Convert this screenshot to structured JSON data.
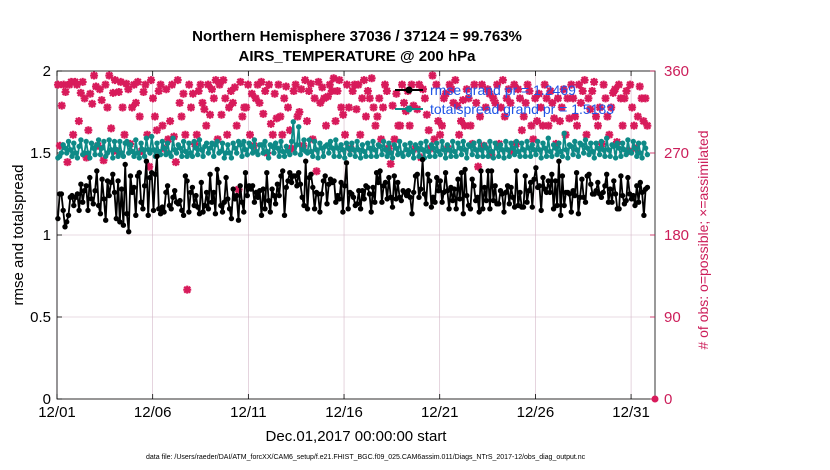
{
  "chart_data": {
    "type": "line",
    "title_line1": "Northern Hemisphere 37036 / 37124 = 99.763%",
    "title_line2": "AIRS_TEMPERATURE @ 200 hPa",
    "xlabel": "Dec.01,2017 00:00:00 start",
    "ylabel": "rmse and totalspread",
    "ylabel_right": "# of obs: o=possible; ×=assimilated",
    "footnote": "data file: /Users/raeder/DAI/ATM_forcXX/CAM6_setup/f.e21.FHIST_BGC.f09_025.CAM6assim.011/Diags_NTrS_2017-12/obs_diag_output.nc",
    "xlim": [
      0,
      31.25
    ],
    "ylim": [
      0,
      2
    ],
    "ylim_right": [
      0,
      360
    ],
    "x_ticks": [
      0,
      5,
      10,
      15,
      20,
      25,
      30
    ],
    "x_tick_labels": [
      "12/01",
      "12/06",
      "12/11",
      "12/16",
      "12/21",
      "12/26",
      "12/31"
    ],
    "y_ticks": [
      0,
      0.5,
      1,
      1.5,
      2
    ],
    "y_tick_labels": [
      "0",
      "0.5",
      "1",
      "1.5",
      "2"
    ],
    "y_right_ticks": [
      0,
      90,
      180,
      270,
      360
    ],
    "y_right_tick_labels": [
      "0",
      "90",
      "180",
      "270",
      "360"
    ],
    "colors": {
      "rmse": "#000000",
      "spread": "#0e8a87",
      "obs": "#d81b5b",
      "legend_text": "#1f55e6",
      "right_axis": "#cc1e5a",
      "grid": "#d4b8c8"
    },
    "series": [
      {
        "name": "rmse grand pr = 1.2469",
        "key": "rmse",
        "values": [
          1.1,
          1.25,
          1.25,
          1.15,
          1.05,
          1.08,
          1.12,
          1.23,
          1.24,
          1.18,
          1.23,
          1.25,
          1.15,
          1.31,
          1.2,
          1.27,
          1.3,
          1.15,
          1.35,
          1.22,
          1.19,
          1.27,
          1.39,
          1.18,
          1.13,
          1.34,
          1.22,
          1.09,
          1.33,
          1.24,
          1.32,
          1.37,
          1.26,
          1.1,
          1.33,
          1.08,
          1.28,
          1.06,
          1.43,
          1.13,
          1.02,
          1.36,
          1.26,
          1.29,
          1.12,
          1.36,
          1.38,
          1.2,
          1.16,
          1.3,
          1.45,
          1.12,
          1.35,
          1.38,
          1.15,
          1.37,
          1.48,
          1.16,
          1.13,
          1.17,
          1.14,
          1.26,
          1.3,
          1.18,
          1.16,
          1.23,
          1.27,
          1.2,
          1.19,
          1.21,
          1.15,
          1.12,
          1.36,
          1.33,
          1.14,
          1.26,
          1.29,
          1.18,
          1.24,
          1.17,
          1.13,
          1.32,
          1.14,
          1.18,
          1.26,
          1.16,
          1.37,
          1.2,
          1.26,
          1.13,
          1.4,
          1.32,
          1.18,
          1.14,
          1.2,
          1.35,
          1.22,
          1.16,
          1.1,
          1.28,
          1.22,
          1.24,
          1.09,
          1.3,
          1.2,
          1.14,
          1.38,
          1.24,
          1.3,
          1.28,
          1.3,
          1.2,
          1.26,
          1.23,
          1.27,
          1.12,
          1.28,
          1.16,
          1.38,
          1.21,
          1.14,
          1.28,
          1.24,
          1.19,
          1.31,
          1.24,
          1.36,
          1.39,
          1.12,
          1.29,
          1.33,
          1.38,
          1.32,
          1.36,
          1.36,
          1.3,
          1.38,
          1.31,
          1.23,
          1.18,
          1.45,
          1.16,
          1.35,
          1.37,
          1.29,
          1.16,
          1.26,
          1.25,
          1.14,
          1.25,
          1.33,
          1.36,
          1.19,
          1.31,
          1.34,
          1.32,
          1.33,
          1.2,
          1.24,
          1.22,
          1.32,
          1.14,
          1.3,
          1.44,
          1.16,
          1.26,
          1.25,
          1.23,
          1.18,
          1.19,
          1.27,
          1.16,
          1.27,
          1.22,
          1.3,
          1.29,
          1.25,
          1.14,
          1.29,
          1.2,
          1.38,
          1.32,
          1.39,
          1.2,
          1.3,
          1.32,
          1.22,
          1.35,
          1.23,
          1.17,
          1.36,
          1.22,
          1.32,
          1.23,
          1.21,
          1.27,
          1.26,
          1.24,
          1.27,
          1.23,
          1.13,
          1.26,
          1.36,
          1.37,
          1.23,
          1.28,
          1.46,
          1.25,
          1.19,
          1.37,
          1.33,
          1.17,
          1.23,
          1.2,
          1.35,
          1.27,
          1.33,
          1.2,
          1.26,
          1.38,
          1.27,
          1.16,
          1.29,
          1.21,
          1.28,
          1.16,
          1.34,
          1.22,
          1.38,
          1.13,
          1.4,
          1.24,
          1.18,
          1.16,
          1.34,
          1.3,
          1.21,
          1.23,
          1.14,
          1.39,
          1.16,
          1.29,
          1.21,
          1.39,
          1.16,
          1.39,
          1.21,
          1.3,
          1.19,
          1.19,
          1.27,
          1.25,
          1.14,
          1.26,
          1.3,
          1.19,
          1.29,
          1.23,
          1.17,
          1.39,
          1.18,
          1.26,
          1.17,
          1.17,
          1.36,
          1.2,
          1.27,
          1.32,
          1.17,
          1.34,
          1.41,
          1.29,
          1.3,
          1.15,
          1.35,
          1.28,
          1.26,
          1.33,
          1.26,
          1.37,
          1.16,
          1.33,
          1.18,
          1.45,
          1.12,
          1.36,
          1.18,
          1.26,
          1.26,
          1.25,
          1.14,
          1.27,
          1.24,
          1.38,
          1.13,
          1.23,
          1.34,
          1.23,
          1.2,
          1.36,
          1.37,
          1.31,
          1.25,
          1.25,
          1.27,
          1.32,
          1.25,
          1.23,
          1.26,
          1.3,
          1.37,
          1.2,
          1.28,
          1.2,
          1.33,
          1.25,
          1.16,
          1.16,
          1.36,
          1.24,
          1.19,
          1.21,
          1.35,
          1.25,
          1.22,
          1.24,
          1.18,
          1.3,
          1.2,
          1.32,
          1.26,
          1.12,
          1.28,
          1.29
        ]
      },
      {
        "name": "totalspread grand pr = 1.5183",
        "key": "spread",
        "values": [
          1.47,
          1.48,
          1.5,
          1.55,
          1.53,
          1.5,
          1.57,
          1.52,
          1.48,
          1.56,
          1.5,
          1.47,
          1.54,
          1.58,
          1.49,
          1.5,
          1.57,
          1.5,
          1.47,
          1.56,
          1.53,
          1.49,
          1.55,
          1.58,
          1.49,
          1.53,
          1.57,
          1.48,
          1.5,
          1.58,
          1.52,
          1.47,
          1.57,
          1.52,
          1.48,
          1.57,
          1.5,
          1.48,
          1.56,
          1.57,
          1.5,
          1.55,
          1.51,
          1.48,
          1.58,
          1.5,
          1.47,
          1.56,
          1.52,
          1.48,
          1.59,
          1.52,
          1.5,
          1.6,
          1.52,
          1.48,
          1.56,
          1.51,
          1.49,
          1.57,
          1.53,
          1.49,
          1.56,
          1.5,
          1.48,
          1.59,
          1.52,
          1.5,
          1.55,
          1.53,
          1.48,
          1.57,
          1.51,
          1.48,
          1.56,
          1.5,
          1.48,
          1.57,
          1.53,
          1.49,
          1.58,
          1.52,
          1.48,
          1.54,
          1.56,
          1.5,
          1.53,
          1.56,
          1.48,
          1.55,
          1.57,
          1.5,
          1.51,
          1.56,
          1.47,
          1.5,
          1.55,
          1.5,
          1.47,
          1.56,
          1.53,
          1.5,
          1.57,
          1.55,
          1.48,
          1.57,
          1.52,
          1.49,
          1.56,
          1.54,
          1.5,
          1.58,
          1.51,
          1.49,
          1.55,
          1.55,
          1.5,
          1.57,
          1.51,
          1.47,
          1.55,
          1.54,
          1.5,
          1.56,
          1.53,
          1.48,
          1.57,
          1.51,
          1.48,
          1.54,
          1.51,
          1.49,
          1.57,
          1.69,
          1.5,
          1.55,
          1.66,
          1.49,
          1.52,
          1.58,
          1.51,
          1.5,
          1.58,
          1.51,
          1.48,
          1.57,
          1.52,
          1.47,
          1.56,
          1.53,
          1.48,
          1.54,
          1.55,
          1.5,
          1.57,
          1.53,
          1.48,
          1.58,
          1.53,
          1.48,
          1.55,
          1.52,
          1.47,
          1.56,
          1.53,
          1.49,
          1.56,
          1.52,
          1.48,
          1.57,
          1.52,
          1.47,
          1.55,
          1.51,
          1.48,
          1.56,
          1.53,
          1.48,
          1.57,
          1.52,
          1.48,
          1.55,
          1.54,
          1.49,
          1.57,
          1.52,
          1.48,
          1.56,
          1.5,
          1.47,
          1.55,
          1.53,
          1.49,
          1.57,
          1.5,
          1.48,
          1.55,
          1.52,
          1.49,
          1.56,
          1.51,
          1.47,
          1.55,
          1.53,
          1.48,
          1.56,
          1.52,
          1.47,
          1.57,
          1.51,
          1.48,
          1.55,
          1.53,
          1.48,
          1.56,
          1.51,
          1.49,
          1.57,
          1.52,
          1.47,
          1.55,
          1.52,
          1.48,
          1.57,
          1.51,
          1.48,
          1.56,
          1.53,
          1.49,
          1.57,
          1.52,
          1.47,
          1.55,
          1.54,
          1.49,
          1.56,
          1.52,
          1.48,
          1.57,
          1.52,
          1.48,
          1.55,
          1.53,
          1.48,
          1.57,
          1.51,
          1.47,
          1.56,
          1.53,
          1.48,
          1.55,
          1.52,
          1.47,
          1.57,
          1.52,
          1.48,
          1.56,
          1.53,
          1.49,
          1.57,
          1.51,
          1.48,
          1.56,
          1.52,
          1.48,
          1.57,
          1.53,
          1.48,
          1.55,
          1.52,
          1.49,
          1.57,
          1.52,
          1.47,
          1.56,
          1.53,
          1.48,
          1.59,
          1.51,
          1.48,
          1.55,
          1.53,
          1.49,
          1.56,
          1.51,
          1.48,
          1.62,
          1.52,
          1.47,
          1.55,
          1.54,
          1.49,
          1.57,
          1.52,
          1.48,
          1.56,
          1.55,
          1.5,
          1.58,
          1.53,
          1.49,
          1.56,
          1.51,
          1.47,
          1.56,
          1.53,
          1.49,
          1.57,
          1.52,
          1.48,
          1.59,
          1.52,
          1.48,
          1.55,
          1.54,
          1.47,
          1.56,
          1.53,
          1.48,
          1.56,
          1.52,
          1.49,
          1.58,
          1.51,
          1.5,
          1.57,
          1.53,
          1.48,
          1.56,
          1.5,
          1.47,
          1.56,
          1.53,
          1.49
        ]
      }
    ],
    "obs_series": {
      "name": "# of obs assimilated",
      "key": "obs",
      "values": [
        345,
        278,
        322,
        345,
        337,
        260,
        345,
        348,
        290,
        348,
        345,
        305,
        336,
        348,
        330,
        265,
        295,
        335,
        324,
        355,
        343,
        278,
        340,
        328,
        262,
        345,
        320,
        355,
        297,
        336,
        350,
        272,
        337,
        348,
        320,
        290,
        346,
        340,
        280,
        320,
        345,
        325,
        348,
        310,
        272,
        337,
        345,
        290,
        255,
        350,
        330,
        310,
        295,
        338,
        345,
        300,
        275,
        340,
        285,
        305,
        345,
        288,
        260,
        350,
        325,
        310,
        335,
        290,
        120,
        345,
        320,
        335,
        280,
        290,
        338,
        345,
        325,
        318,
        300,
        345,
        312,
        340,
        330,
        350,
        285,
        345,
        312,
        350,
        330,
        290,
        320,
        338,
        325,
        342,
        300,
        230,
        348,
        310,
        320,
        320,
        345,
        290,
        335,
        278,
        330,
        345,
        325,
        348,
        313,
        338,
        270,
        345,
        302,
        290,
        335,
        308,
        345,
        310,
        290,
        330,
        343,
        320,
        295,
        275,
        338,
        345,
        310,
        315,
        340,
        278,
        350,
        305,
        338,
        346,
        285,
        330,
        250,
        348,
        325,
        342,
        330,
        300,
        332,
        345,
        338,
        352,
        305,
        338,
        350,
        320,
        312,
        290,
        345,
        320,
        275,
        338,
        345,
        318,
        345,
        290,
        330,
        350,
        310,
        338,
        330,
        352,
        320,
        300,
        310,
        330,
        285,
        320,
        345,
        338,
        275,
        258,
        322,
        285,
        335,
        300,
        300,
        345,
        325,
        316,
        338,
        300,
        345,
        322,
        275,
        318,
        345,
        265,
        340,
        330,
        312,
        295,
        275,
        355,
        285,
        345,
        305,
        290,
        300,
        330,
        335,
        275,
        345,
        340,
        325,
        350,
        322,
        290,
        305,
        328,
        300,
        340,
        330,
        300,
        280,
        345,
        325,
        255,
        310,
        345,
        278,
        320,
        340,
        335,
        268,
        330,
        325,
        345,
        280,
        320,
        350,
        310,
        330,
        340,
        325,
        272,
        345,
        280,
        340,
        330,
        295,
        310,
        325,
        345,
        338,
        300,
        285,
        330,
        305,
        335,
        320,
        300,
        345,
        330,
        300,
        338,
        325,
        308,
        280,
        330,
        305,
        320,
        340,
        290,
        330,
        308,
        345,
        330,
        310,
        300,
        345,
        325,
        338,
        350,
        290,
        330,
        318,
        338,
        348,
        310,
        300,
        320,
        280,
        345,
        330,
        310,
        290,
        320,
        336,
        340,
        282,
        345,
        330,
        300,
        330,
        338,
        272,
        345,
        320,
        300,
        275,
        310,
        343,
        330,
        305,
        330,
        300
      ]
    },
    "legend": [
      {
        "label": "rmse grand pr = 1.2469",
        "key": "rmse"
      },
      {
        "label": "totalspread grand pr = 1.5183",
        "key": "spread"
      }
    ]
  }
}
